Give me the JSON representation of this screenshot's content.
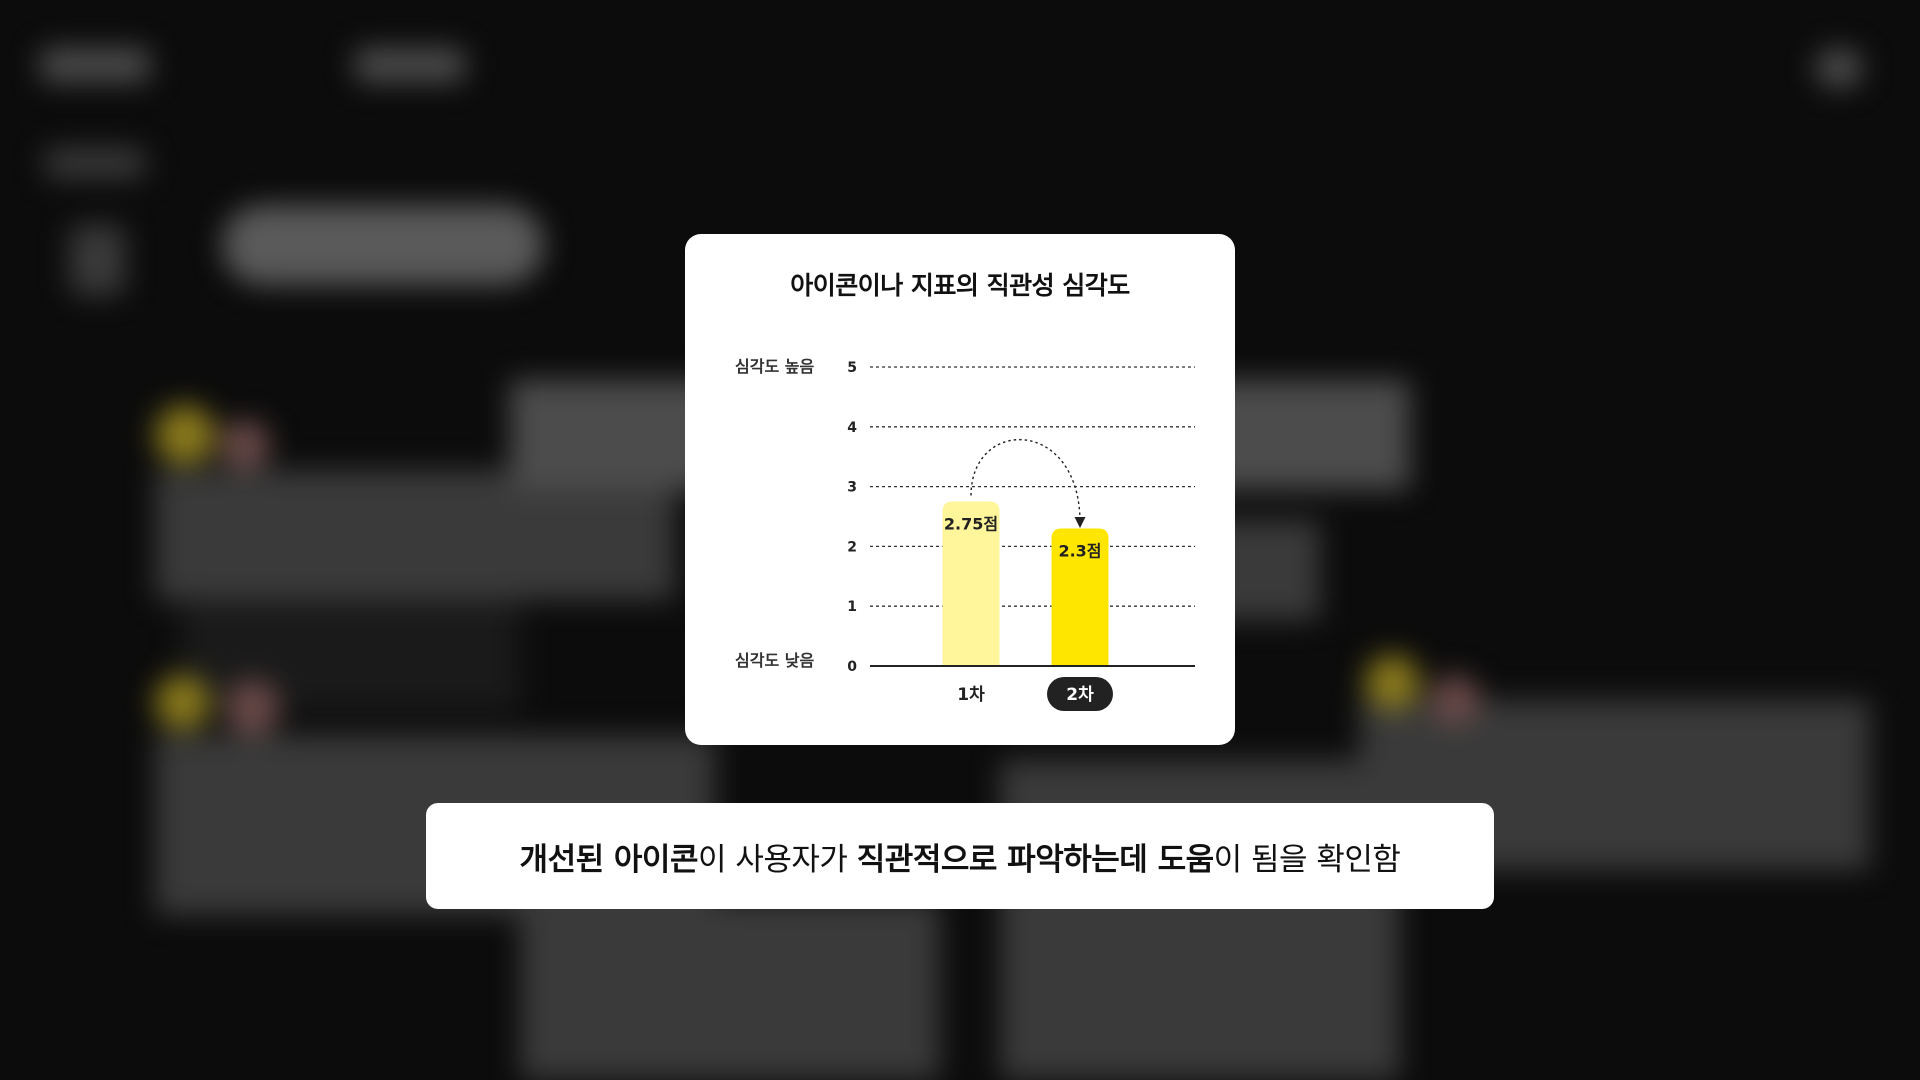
{
  "chart_data": {
    "type": "bar",
    "title": "아이콘이나 지표의 직관성 심각도",
    "categories": [
      "1차",
      "2차"
    ],
    "values": [
      2.75,
      2.3
    ],
    "data_labels": [
      "2.75점",
      "2.3점"
    ],
    "highlighted_category": "2차",
    "ylim": [
      0,
      5
    ],
    "yticks": [
      "0",
      "1",
      "2",
      "3",
      "4",
      "5"
    ],
    "y_high_label": "심각도 높음",
    "y_low_label": "심각도 낮음",
    "grid": "dashed horizontal",
    "bar_colors": [
      "#FFF59A",
      "#FFE600"
    ],
    "annotation": "curved dotted arrow from 1차 to 2차"
  },
  "caption": {
    "part1": "개선된 아이콘",
    "part2": "이 사용자가 ",
    "part3": "직관적으로 파악하는데 도움",
    "part4": "이 됨을 확인함"
  },
  "colors": {
    "background": "#0C0C0C",
    "card": "#FFFFFF",
    "highlight_pill": "#222222"
  }
}
